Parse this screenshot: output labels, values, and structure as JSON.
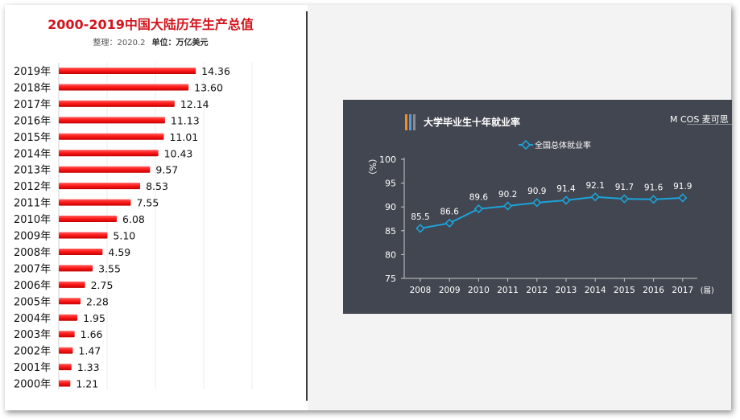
{
  "left_chart": {
    "title": "2000-2019中国大陆历年生产总值",
    "subtitle_prefix": "整理：2020.2",
    "subtitle_unit": "单位：万亿美元"
  },
  "right_chart": {
    "title": "大学毕业生十年就业率",
    "logo": "M COS 麦可思",
    "stripe_colors": [
      "#f28c28",
      "#5b9bd5",
      "#8c8c8c"
    ]
  },
  "colors": {
    "bar_red": "#ff1b1b",
    "title_red": "#d4141c",
    "card_bg": "#424650",
    "line_cyan": "#1ba3d9"
  },
  "chart_data": [
    {
      "type": "bar",
      "orientation": "horizontal",
      "title": "2000-2019中国大陆历年生产总值",
      "subtitle": "整理：2020.2 单位：万亿美元",
      "categories": [
        "2019年",
        "2018年",
        "2017年",
        "2016年",
        "2015年",
        "2014年",
        "2013年",
        "2012年",
        "2011年",
        "2010年",
        "2009年",
        "2008年",
        "2007年",
        "2006年",
        "2005年",
        "2004年",
        "2003年",
        "2002年",
        "2001年",
        "2000年"
      ],
      "values": [
        14.36,
        13.6,
        12.14,
        11.13,
        11.01,
        10.43,
        9.57,
        8.53,
        7.55,
        6.08,
        5.1,
        4.59,
        3.55,
        2.75,
        2.28,
        1.95,
        1.66,
        1.47,
        1.33,
        1.21
      ],
      "value_labels": [
        "14.36",
        "13.60",
        "12.14",
        "11.13",
        "11.01",
        "10.43",
        "9.57",
        "8.53",
        "7.55",
        "6.08",
        "5.10",
        "4.59",
        "3.55",
        "2.75",
        "2.28",
        "1.95",
        "1.66",
        "1.47",
        "1.33",
        "1.21"
      ],
      "xlim": [
        0,
        16
      ],
      "grid": true
    },
    {
      "type": "line",
      "title": "大学毕业生十年就业率",
      "x": [
        "2008",
        "2009",
        "2010",
        "2011",
        "2012",
        "2013",
        "2014",
        "2015",
        "2016",
        "2017"
      ],
      "x_unit": "(届)",
      "ylabel": "（%）",
      "ylim": [
        75,
        100
      ],
      "yticks": [
        75,
        80,
        85,
        90,
        95,
        100
      ],
      "series": [
        {
          "name": "全国总体就业率",
          "values": [
            85.5,
            86.6,
            89.6,
            90.2,
            90.9,
            91.4,
            92.1,
            91.7,
            91.6,
            91.9
          ]
        }
      ],
      "legend": "top-center",
      "grid": false
    }
  ]
}
